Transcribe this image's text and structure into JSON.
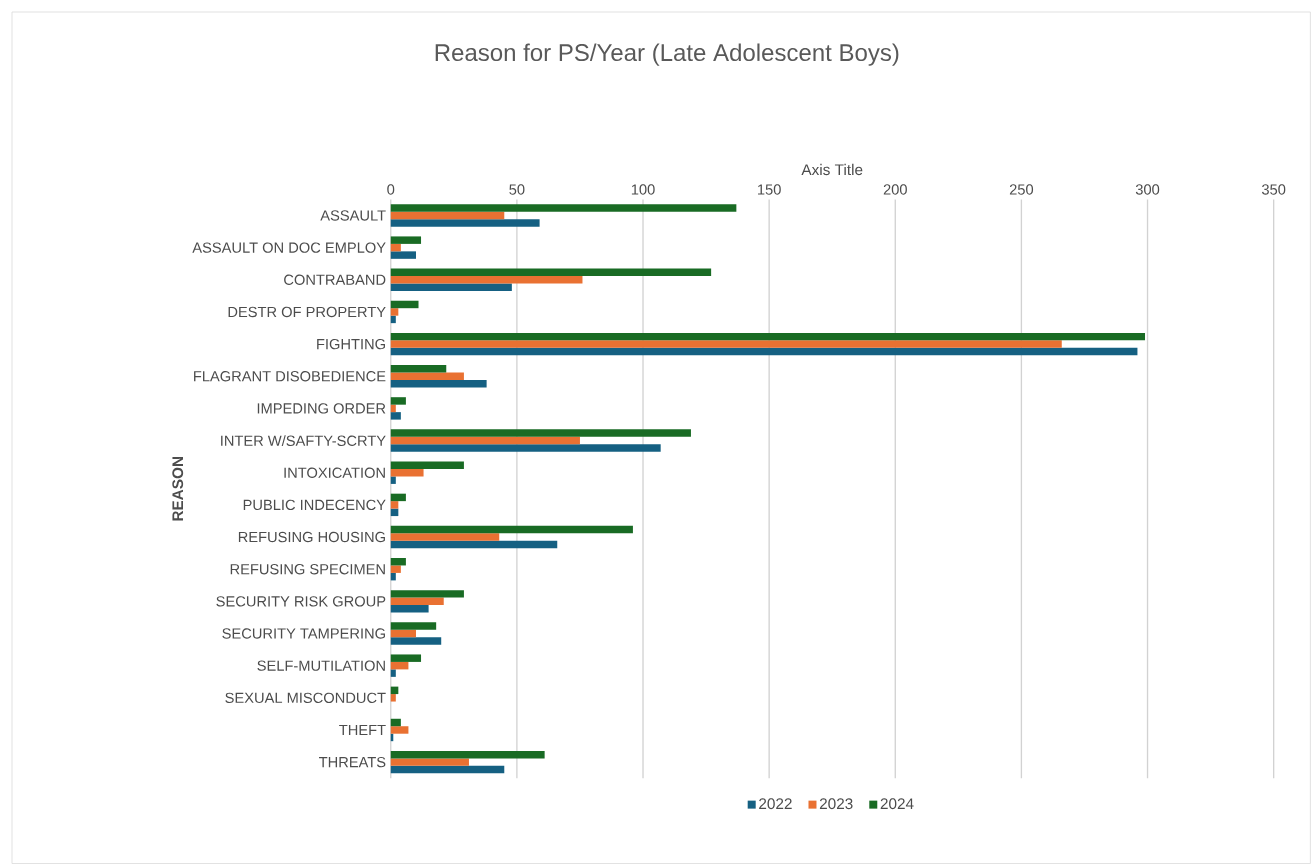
{
  "chart_data": {
    "type": "bar",
    "orientation": "horizontal",
    "title": "Reason for PS/Year (Late Adolescent Boys)",
    "xlabel": "Axis Title",
    "ylabel": "REASON",
    "categories": [
      "ASSAULT",
      "ASSAULT ON DOC EMPLOY",
      "CONTRABAND",
      "DESTR OF PROPERTY",
      "FIGHTING",
      "FLAGRANT DISOBEDIENCE",
      "IMPEDING ORDER",
      "INTER W/SAFTY-SCRTY",
      "INTOXICATION",
      "PUBLIC INDECENCY",
      "REFUSING HOUSING",
      "REFUSING SPECIMEN",
      "SECURITY RISK GROUP",
      "SECURITY TAMPERING",
      "SELF-MUTILATION",
      "SEXUAL MISCONDUCT",
      "THEFT",
      "THREATS"
    ],
    "series": [
      {
        "name": "2022",
        "color": "#156082",
        "values": [
          59,
          10,
          48,
          2,
          296,
          38,
          4,
          107,
          2,
          3,
          66,
          2,
          15,
          20,
          2,
          0,
          1,
          45
        ]
      },
      {
        "name": "2023",
        "color": "#e97132",
        "values": [
          45,
          4,
          76,
          3,
          266,
          29,
          2,
          75,
          13,
          3,
          43,
          4,
          21,
          10,
          7,
          2,
          7,
          31
        ]
      },
      {
        "name": "2024",
        "color": "#196b24",
        "values": [
          137,
          12,
          127,
          11,
          299,
          22,
          6,
          119,
          29,
          6,
          96,
          6,
          29,
          18,
          12,
          3,
          4,
          61
        ]
      }
    ],
    "xlim": [
      0,
      350
    ],
    "xticks": [
      0,
      50,
      100,
      150,
      200,
      250,
      300,
      350
    ],
    "grid": "x",
    "legend": "bottom"
  }
}
